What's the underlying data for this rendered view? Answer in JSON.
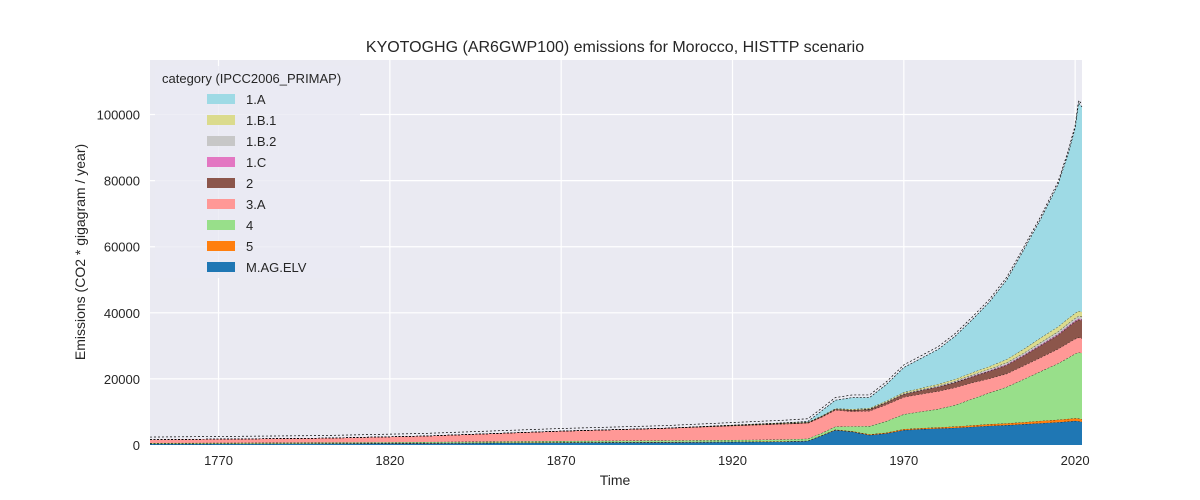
{
  "chart_data": {
    "type": "area",
    "title": "KYOTOGHG (AR6GWP100) emissions for Morocco, HISTTP scenario",
    "xlabel": "Time",
    "ylabel": "Emissions (CO2 * gigagram / year)",
    "xlim": [
      1750,
      2022
    ],
    "ylim": [
      0,
      116500
    ],
    "xticks": [
      1770,
      1820,
      1870,
      1920,
      1970,
      2020
    ],
    "yticks": [
      0,
      20000,
      40000,
      60000,
      80000,
      100000
    ],
    "grid": true,
    "legend_title": "category (IPCC2006_PRIMAP)",
    "legend_position": "top-left",
    "x": [
      1750,
      1800,
      1830,
      1850,
      1870,
      1900,
      1920,
      1935,
      1942,
      1946,
      1950,
      1955,
      1960,
      1965,
      1970,
      1975,
      1980,
      1985,
      1990,
      1995,
      2000,
      2005,
      2010,
      2015,
      2018,
      2020,
      2021,
      2022
    ],
    "series": [
      {
        "name": "M.AG.ELV",
        "color": "#1f77b4",
        "values": [
          300,
          400,
          500,
          600,
          700,
          800,
          900,
          1000,
          1200,
          2800,
          4500,
          4000,
          3000,
          3500,
          4500,
          4800,
          5000,
          5200,
          5500,
          5800,
          6000,
          6300,
          6600,
          6900,
          7100,
          7300,
          7200,
          7000
        ]
      },
      {
        "name": "5",
        "color": "#ff7f0e",
        "values": [
          100,
          100,
          100,
          100,
          100,
          100,
          100,
          100,
          100,
          100,
          150,
          150,
          200,
          250,
          300,
          300,
          350,
          400,
          450,
          500,
          550,
          600,
          700,
          750,
          800,
          800,
          800,
          800
        ]
      },
      {
        "name": "4",
        "color": "#98df8a",
        "values": [
          200,
          250,
          300,
          350,
          400,
          450,
          500,
          550,
          600,
          700,
          900,
          1500,
          2500,
          3500,
          4500,
          5000,
          5500,
          6500,
          8000,
          9500,
          11000,
          13000,
          15000,
          17000,
          18500,
          19500,
          20000,
          20000
        ]
      },
      {
        "name": "3.A",
        "color": "#ff9896",
        "values": [
          1000,
          1300,
          1800,
          2400,
          3000,
          3700,
          4300,
          4700,
          4700,
          4800,
          5000,
          4500,
          4600,
          5000,
          5200,
          5300,
          5400,
          5300,
          4900,
          4300,
          4000,
          4100,
          4200,
          4400,
          4500,
          4500,
          4500,
          4500
        ]
      },
      {
        "name": "2",
        "color": "#8c564b",
        "values": [
          0,
          0,
          0,
          0,
          0,
          0,
          100,
          200,
          200,
          250,
          300,
          400,
          500,
          700,
          900,
          1100,
          1300,
          1500,
          1800,
          2200,
          2600,
          3000,
          3600,
          4200,
          4800,
          5200,
          5400,
          5400
        ]
      },
      {
        "name": "1.C",
        "color": "#e377c2",
        "values": [
          0,
          0,
          0,
          0,
          0,
          0,
          0,
          0,
          0,
          0,
          0,
          0,
          0,
          0,
          0,
          50,
          80,
          100,
          150,
          200,
          220,
          250,
          280,
          300,
          300,
          300,
          300,
          300
        ]
      },
      {
        "name": "1.B.2",
        "color": "#c7c7c7",
        "values": [
          0,
          0,
          0,
          0,
          0,
          0,
          0,
          0,
          0,
          0,
          0,
          50,
          100,
          150,
          200,
          250,
          300,
          350,
          450,
          500,
          550,
          600,
          700,
          750,
          800,
          800,
          800,
          800
        ]
      },
      {
        "name": "1.B.1",
        "color": "#dbdb8d",
        "values": [
          0,
          0,
          0,
          0,
          0,
          0,
          100,
          150,
          150,
          150,
          200,
          250,
          250,
          300,
          350,
          400,
          500,
          600,
          700,
          800,
          1000,
          1200,
          1400,
          1500,
          1500,
          1500,
          1500,
          1500
        ]
      },
      {
        "name": "1.A",
        "color": "#9edae5",
        "values": [
          0,
          0,
          0,
          0,
          0,
          0,
          0,
          0,
          200,
          1500,
          2500,
          3500,
          3200,
          5000,
          7500,
          9000,
          10500,
          13000,
          16000,
          19500,
          24000,
          30000,
          36000,
          43000,
          50000,
          56000,
          63000,
          62000
        ]
      }
    ]
  }
}
